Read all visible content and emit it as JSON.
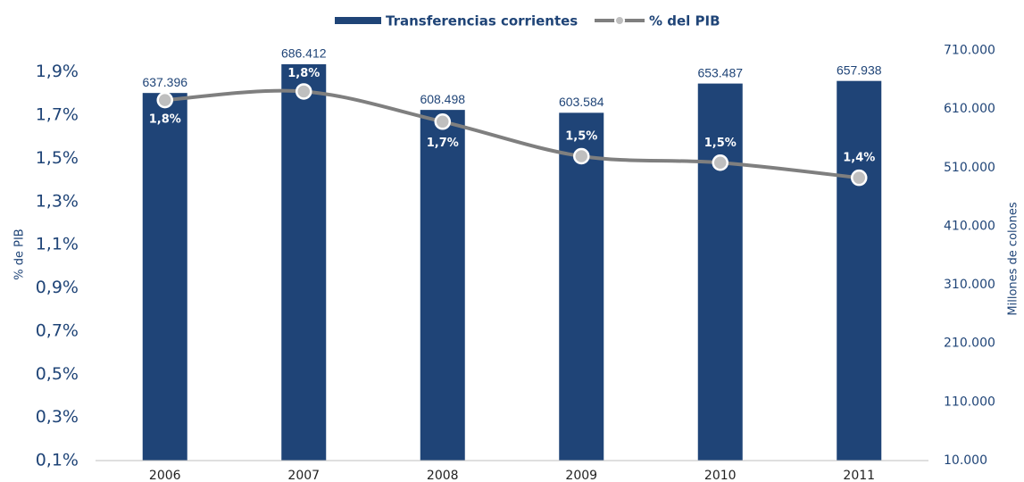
{
  "chart_data": {
    "type": "bar_line",
    "categories": [
      "2006",
      "2007",
      "2008",
      "2009",
      "2010",
      "2011"
    ],
    "series": [
      {
        "name": "Transferencias corrientes",
        "type": "bar",
        "axis": "y2",
        "color": "#1f4477",
        "values": [
          637396,
          686412,
          608498,
          603584,
          653487,
          657938
        ],
        "value_labels": [
          "637.396",
          "686.412",
          "608.498",
          "603.584",
          "653.487",
          "657.938"
        ]
      },
      {
        "name": "% del PIB",
        "type": "line",
        "axis": "y",
        "color": "#7f7f7f",
        "values": [
          1.77,
          1.81,
          1.67,
          1.51,
          1.48,
          1.41
        ],
        "value_labels": [
          "1,8%",
          "1,8%",
          "1,7%",
          "1,5%",
          "1,5%",
          "1,4%"
        ]
      }
    ],
    "ylabel": "% de PIB",
    "y2label": "Millones de colones",
    "ylim": [
      0.1,
      2.0
    ],
    "yticks": [
      {
        "value": 0.1,
        "label": "0,1%"
      },
      {
        "value": 0.3,
        "label": "0,3%"
      },
      {
        "value": 0.5,
        "label": "0,5%"
      },
      {
        "value": 0.7,
        "label": "0,7%"
      },
      {
        "value": 0.9,
        "label": "0,9%"
      },
      {
        "value": 1.1,
        "label": "1,1%"
      },
      {
        "value": 1.3,
        "label": "1,3%"
      },
      {
        "value": 1.5,
        "label": "1,5%"
      },
      {
        "value": 1.7,
        "label": "1,7%"
      },
      {
        "value": 1.9,
        "label": "1,9%"
      }
    ],
    "y2lim": [
      10000,
      710000
    ],
    "y2ticks": [
      {
        "value": 10000,
        "label": "10.000"
      },
      {
        "value": 110000,
        "label": "110.000"
      },
      {
        "value": 210000,
        "label": "210.000"
      },
      {
        "value": 310000,
        "label": "310.000"
      },
      {
        "value": 410000,
        "label": "410.000"
      },
      {
        "value": 510000,
        "label": "510.000"
      },
      {
        "value": 610000,
        "label": "610.000"
      },
      {
        "value": 710000,
        "label": "710.000"
      }
    ],
    "grid": false,
    "legend": "top"
  }
}
